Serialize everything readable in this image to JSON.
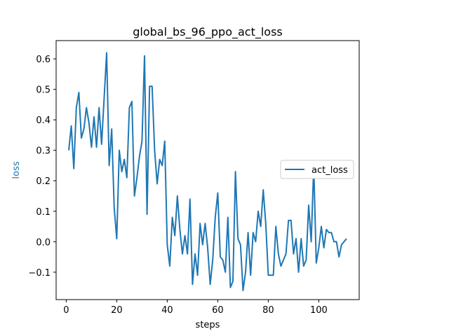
{
  "chart_data": {
    "type": "line",
    "title": "global_bs_96_ppo_act_loss",
    "xlabel": "steps",
    "ylabel": "loss",
    "xlim": [
      -4,
      116
    ],
    "ylim": [
      -0.19,
      0.66
    ],
    "xticks": [
      0,
      20,
      40,
      60,
      80,
      100
    ],
    "yticks": [
      -0.1,
      0.0,
      0.1,
      0.2,
      0.3,
      0.4,
      0.5,
      0.6
    ],
    "grid": false,
    "legend_position": "center-right",
    "colors": {
      "series": "#1f77b4",
      "ylabel": "#1f77b4",
      "axes": "#000000"
    },
    "series": [
      {
        "name": "act_loss",
        "x": [
          1,
          2,
          3,
          4,
          5,
          6,
          7,
          8,
          9,
          10,
          11,
          12,
          13,
          14,
          15,
          16,
          17,
          18,
          19,
          20,
          21,
          22,
          23,
          24,
          25,
          26,
          27,
          28,
          29,
          30,
          31,
          32,
          33,
          34,
          35,
          36,
          37,
          38,
          39,
          40,
          41,
          42,
          43,
          44,
          45,
          46,
          47,
          48,
          49,
          50,
          51,
          52,
          53,
          54,
          55,
          56,
          57,
          58,
          59,
          60,
          61,
          62,
          63,
          64,
          65,
          66,
          67,
          68,
          69,
          70,
          71,
          72,
          73,
          74,
          75,
          76,
          77,
          78,
          79,
          80,
          81,
          82,
          83,
          84,
          85,
          86,
          87,
          88,
          89,
          90,
          91,
          92,
          93,
          94,
          95,
          96,
          97,
          98,
          99,
          100,
          101,
          102,
          103,
          104,
          105,
          106,
          107,
          108,
          109,
          110,
          111
        ],
        "y": [
          0.3,
          0.38,
          0.24,
          0.44,
          0.49,
          0.34,
          0.37,
          0.44,
          0.39,
          0.31,
          0.41,
          0.31,
          0.44,
          0.32,
          0.47,
          0.62,
          0.25,
          0.37,
          0.11,
          0.01,
          0.3,
          0.23,
          0.27,
          0.21,
          0.44,
          0.46,
          0.15,
          0.21,
          0.28,
          0.33,
          0.61,
          0.09,
          0.51,
          0.51,
          0.3,
          0.19,
          0.27,
          0.25,
          0.33,
          -0.01,
          -0.08,
          0.08,
          0.02,
          0.15,
          0.04,
          -0.04,
          0.02,
          -0.04,
          0.14,
          -0.14,
          -0.04,
          -0.11,
          0.06,
          -0.01,
          0.06,
          -0.02,
          -0.14,
          -0.06,
          0.08,
          0.16,
          -0.05,
          -0.06,
          -0.1,
          0.08,
          -0.15,
          -0.13,
          0.23,
          0.01,
          -0.01,
          -0.16,
          -0.1,
          0.03,
          -0.11,
          0.03,
          0.0,
          0.1,
          0.05,
          0.17,
          0.06,
          -0.11,
          -0.11,
          -0.11,
          0.05,
          -0.04,
          -0.08,
          -0.06,
          -0.04,
          0.07,
          0.07,
          -0.04,
          0.01,
          -0.1,
          0.01,
          -0.08,
          -0.06,
          0.12,
          0.0,
          0.25,
          -0.07,
          -0.02,
          0.05,
          -0.02,
          0.04,
          0.03,
          0.03,
          0.0,
          0.0,
          -0.05,
          -0.01,
          0.0,
          0.01
        ]
      }
    ]
  }
}
